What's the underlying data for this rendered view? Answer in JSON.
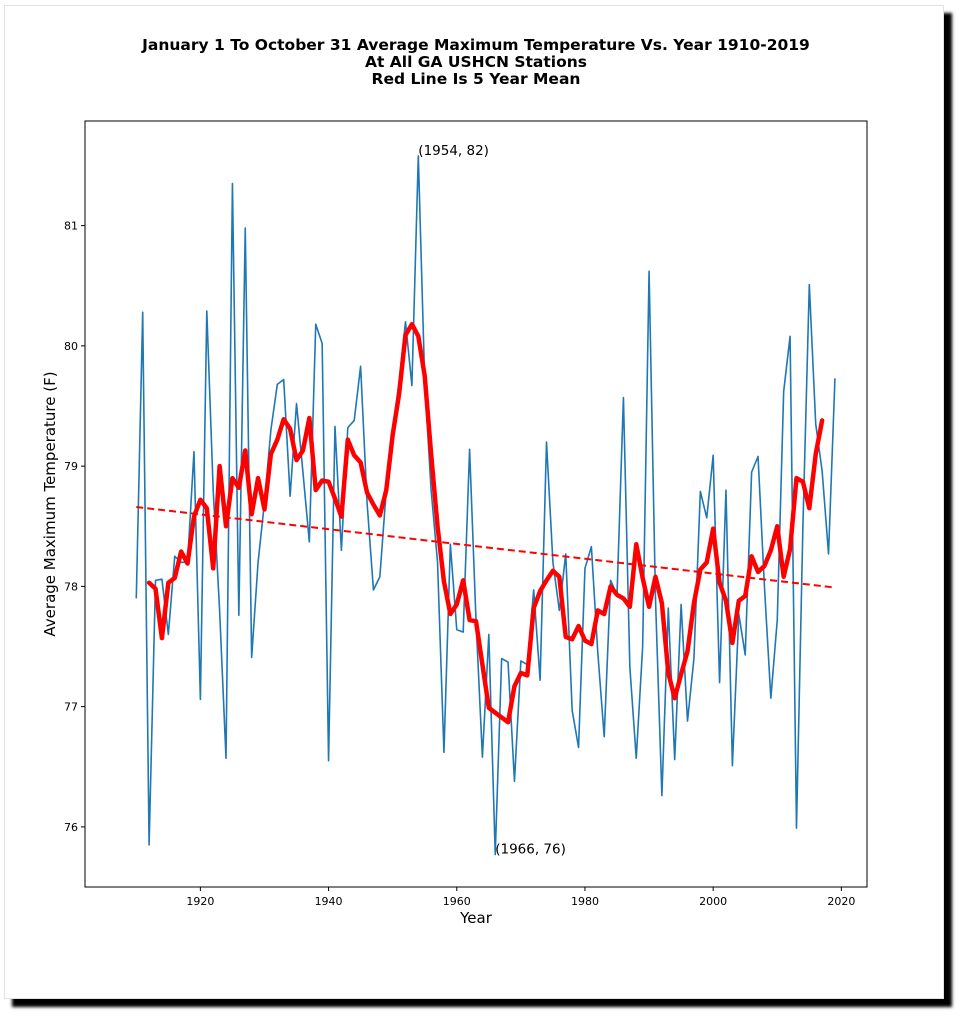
{
  "chart_data": {
    "type": "line",
    "title_lines": [
      "January 1 To October 31 Average Maximum Temperature Vs. Year 1910-2019",
      "At All GA USHCN Stations",
      "Red Line Is 5 Year Mean"
    ],
    "xlabel": "Year",
    "ylabel": "Average Maximum Temperature (F)",
    "xlim": [
      1902,
      2024
    ],
    "ylim": [
      75.5,
      81.87
    ],
    "xticks": [
      1920,
      1940,
      1960,
      1980,
      2000,
      2020
    ],
    "yticks": [
      76,
      77,
      78,
      79,
      80,
      81
    ],
    "grid": false,
    "series": [
      {
        "role": "annual",
        "color": "#1f77b4",
        "x_start": 1910,
        "values": [
          77.9,
          80.28,
          75.85,
          78.05,
          78.06,
          77.6,
          78.25,
          78.2,
          78.2,
          79.12,
          77.06,
          80.29,
          78.8,
          77.8,
          76.57,
          81.35,
          77.76,
          80.98,
          77.41,
          78.2,
          78.7,
          79.3,
          79.68,
          79.72,
          78.75,
          79.52,
          78.95,
          78.37,
          80.18,
          80.02,
          76.55,
          79.33,
          78.3,
          79.32,
          79.38,
          79.83,
          78.7,
          77.97,
          78.08,
          78.8,
          79.3,
          79.7,
          80.2,
          79.67,
          81.58,
          79.7,
          78.8,
          78.2,
          76.62,
          78.35,
          77.64,
          77.62,
          79.14,
          77.72,
          76.58,
          77.6,
          75.77,
          77.4,
          77.37,
          76.38,
          77.38,
          77.35,
          77.97,
          77.22,
          79.2,
          78.2,
          77.8,
          78.27,
          76.97,
          76.66,
          78.15,
          78.33,
          77.45,
          76.75,
          78.05,
          77.93,
          79.57,
          77.33,
          76.57,
          77.5,
          80.62,
          77.9,
          76.26,
          77.82,
          76.56,
          77.85,
          76.88,
          77.4,
          78.79,
          78.57,
          79.09,
          77.2,
          78.8,
          76.51,
          77.77,
          77.43,
          78.95,
          79.08,
          78.0,
          77.07,
          77.72,
          79.62,
          80.08,
          75.99,
          78.5,
          80.51,
          79.35,
          78.96,
          78.27,
          79.73
        ]
      },
      {
        "role": "5-year mean",
        "color": "#ff0000",
        "x_start": 1912,
        "values": [
          78.03,
          77.98,
          77.57,
          78.03,
          78.07,
          78.29,
          78.19,
          78.58,
          78.72,
          78.65,
          78.15,
          79.0,
          78.5,
          78.9,
          78.82,
          79.13,
          78.6,
          78.9,
          78.64,
          79.1,
          79.22,
          79.39,
          79.31,
          79.05,
          79.13,
          79.4,
          78.8,
          78.88,
          78.87,
          78.73,
          78.58,
          79.22,
          79.09,
          79.03,
          78.78,
          78.68,
          78.59,
          78.8,
          79.26,
          79.6,
          80.09,
          80.18,
          80.08,
          79.75,
          79.1,
          78.5,
          78.04,
          77.77,
          77.85,
          78.05,
          77.72,
          77.71,
          77.35,
          76.99,
          76.95,
          76.91,
          76.87,
          77.17,
          77.28,
          77.26,
          77.82,
          77.96,
          78.05,
          78.13,
          78.08,
          77.58,
          77.56,
          77.67,
          77.55,
          77.52,
          77.8,
          77.77,
          78.0,
          77.93,
          77.9,
          77.83,
          78.35,
          78.07,
          77.83,
          78.08,
          77.86,
          77.28,
          77.07,
          77.27,
          77.46,
          77.86,
          78.14,
          78.2,
          78.48,
          78.03,
          77.88,
          77.53,
          77.88,
          77.92,
          78.25,
          78.12,
          78.17,
          78.3,
          78.5,
          78.08,
          78.31,
          78.9,
          78.87,
          78.65,
          79.1,
          79.38
        ]
      },
      {
        "role": "linear trend",
        "color": "#ff0000",
        "style": "dashed",
        "x": [
          1910,
          2019
        ],
        "values": [
          78.66,
          77.99
        ]
      }
    ],
    "annotations": [
      {
        "text": "(1954, 82)",
        "x": 1954,
        "y": 81.58
      },
      {
        "text": "(1966, 76)",
        "x": 1966,
        "y": 75.77
      }
    ]
  }
}
